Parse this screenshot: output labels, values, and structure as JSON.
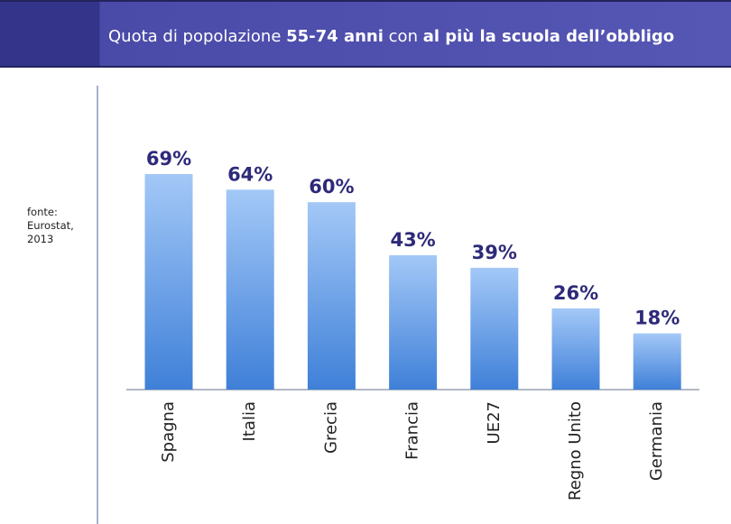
{
  "chart_data": {
    "type": "bar",
    "title_parts": [
      "Quota di popolazione",
      "55-74 anni",
      "con",
      "al più la scuola dell’obbligo"
    ],
    "source": "fonte: Eurostat, 2013",
    "categories": [
      "Spagna",
      "Italia",
      "Grecia",
      "Francia",
      "UE27",
      "Regno Unito",
      "Germania"
    ],
    "values": [
      69,
      64,
      60,
      43,
      39,
      26,
      18
    ],
    "value_labels": [
      "69%",
      "64%",
      "60%",
      "43%",
      "39%",
      "26%",
      "18%"
    ],
    "color": "#5b95e4",
    "grid": false
  }
}
